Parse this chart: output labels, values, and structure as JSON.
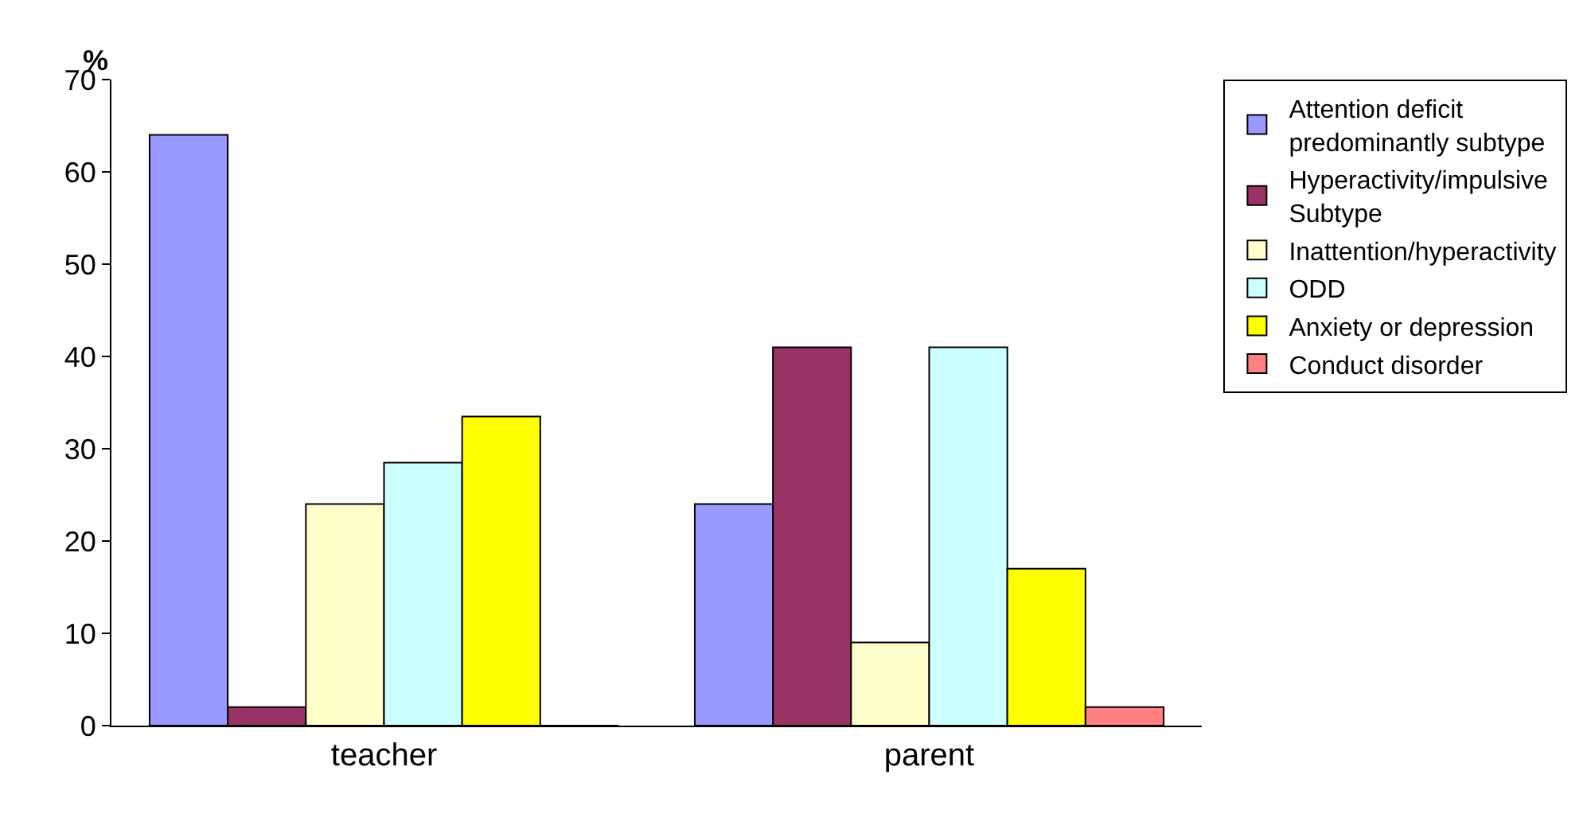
{
  "chart_data": {
    "type": "bar",
    "ylabel": "%",
    "categories": [
      "teacher",
      "parent"
    ],
    "series": [
      {
        "name": "Attention deficit\npredominantly subtype",
        "color": "#9999ff",
        "values": [
          64,
          24
        ]
      },
      {
        "name": "Hyperactivity/impulsive\nSubtype",
        "color": "#993366",
        "values": [
          2,
          41
        ]
      },
      {
        "name": "Inattention/hyperactivity",
        "color": "#ffffcc",
        "values": [
          24,
          9
        ]
      },
      {
        "name": "ODD",
        "color": "#ccffff",
        "values": [
          28.5,
          41
        ]
      },
      {
        "name": "Anxiety or depression",
        "color": "#ffff00",
        "values": [
          33.5,
          17
        ]
      },
      {
        "name": "Conduct disorder",
        "color": "#ff8080",
        "values": [
          0,
          2
        ]
      }
    ],
    "ylim": [
      0,
      70
    ],
    "yticks": [
      0,
      10,
      20,
      30,
      40,
      50,
      60,
      70
    ],
    "grid": false,
    "legend": "right"
  }
}
